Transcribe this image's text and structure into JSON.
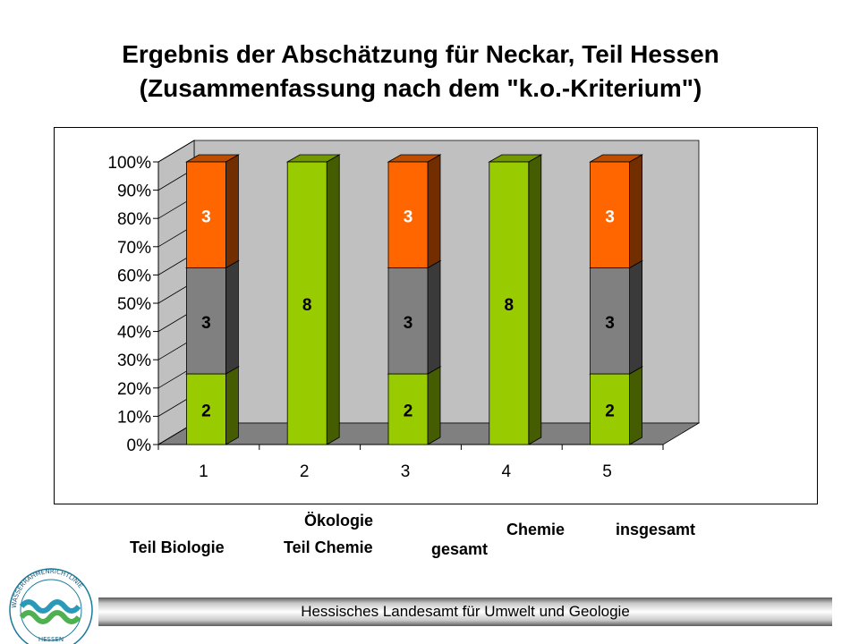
{
  "title": {
    "line1": "Ergebnis der Abschätzung für Neckar, Teil Hessen",
    "line2": "(Zusammenfassung nach dem \"k.o.-Kriterium\")"
  },
  "category_labels": {
    "c1": "Teil Biologie",
    "c2_top": "Ökologie",
    "c2_bottom": "Teil Chemie",
    "c3": "gesamt",
    "c4": "Chemie",
    "c5": "insgesamt"
  },
  "footer": {
    "text": "Hessisches Landesamt für Umwelt und Geologie"
  },
  "logo": {
    "text_top": "WASSERRAHMENRICHTLINIE",
    "text_bottom": "HESSEN"
  },
  "colors": {
    "green": "#99cc00",
    "gray": "#808080",
    "orange": "#ff6600",
    "wall": "#c0c0c0",
    "floor": "#808080"
  },
  "chart_data": {
    "type": "bar",
    "stacked": true,
    "percent_stacked": true,
    "three_d": true,
    "categories": [
      "1",
      "2",
      "3",
      "4",
      "5"
    ],
    "y_ticks": [
      "0%",
      "10%",
      "20%",
      "30%",
      "40%",
      "50%",
      "60%",
      "70%",
      "80%",
      "90%",
      "100%"
    ],
    "ylim": [
      0,
      100
    ],
    "grid": false,
    "legend": "none",
    "series": [
      {
        "color": "#99cc00",
        "values": [
          2,
          8,
          2,
          8,
          2
        ],
        "labels": [
          "2",
          "8",
          "2",
          "8",
          "2"
        ]
      },
      {
        "color": "#808080",
        "values": [
          3,
          0,
          3,
          0,
          3
        ],
        "labels": [
          "3",
          "",
          "3",
          "",
          "3"
        ]
      },
      {
        "color": "#ff6600",
        "values": [
          3,
          0,
          3,
          0,
          3
        ],
        "labels": [
          "3",
          "",
          "3",
          "",
          "3"
        ]
      }
    ]
  }
}
